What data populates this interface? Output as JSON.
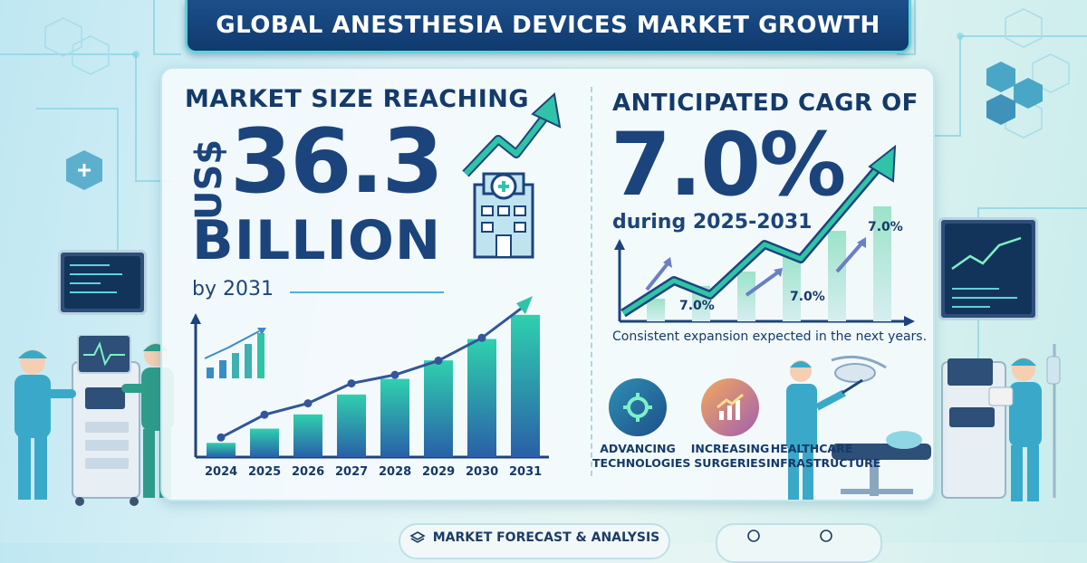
{
  "title": "GLOBAL ANESTHESIA DEVICES MARKET GROWTH",
  "market_size": {
    "heading": "MARKET SIZE REACHING",
    "currency": "US$",
    "value": "36.3",
    "unit": "BILLION",
    "year_text": "by 2031"
  },
  "cagr": {
    "heading": "ANTICIPATED CAGR OF",
    "value": "7.0%",
    "period": "during 2025-2031",
    "chart_labels": [
      "7.0%",
      "7.0%",
      "7.0%"
    ],
    "caption": "Consistent expansion expected in the next years."
  },
  "chart_data": {
    "type": "bar",
    "categories": [
      "2024",
      "2025",
      "2026",
      "2027",
      "2028",
      "2029",
      "2030",
      "2031"
    ],
    "values": [
      1,
      2,
      3,
      4.4,
      5.5,
      6.8,
      8.3,
      10
    ],
    "trend_line": [
      1,
      2.6,
      3.4,
      4.8,
      5.4,
      6.4,
      8.0,
      10.3
    ]
  },
  "features": [
    {
      "label": "ADVANCING TECHNOLOGIES",
      "icon": "gear-icon"
    },
    {
      "label": "INCREASING SURGERIES",
      "icon": "growth-chart-icon"
    },
    {
      "label": "HEALTHCARE INFRASTRUCTURE",
      "icon": "surgeon-icon"
    }
  ],
  "footer": {
    "label": "MARKET FORECAST & ANALYSIS",
    "icon": "layers-icon"
  },
  "colors": {
    "navy": "#1c447c",
    "teal": "#2fc4a8",
    "title_bg": "#1d4f8a",
    "accent_cyan": "#5fd3d9"
  }
}
